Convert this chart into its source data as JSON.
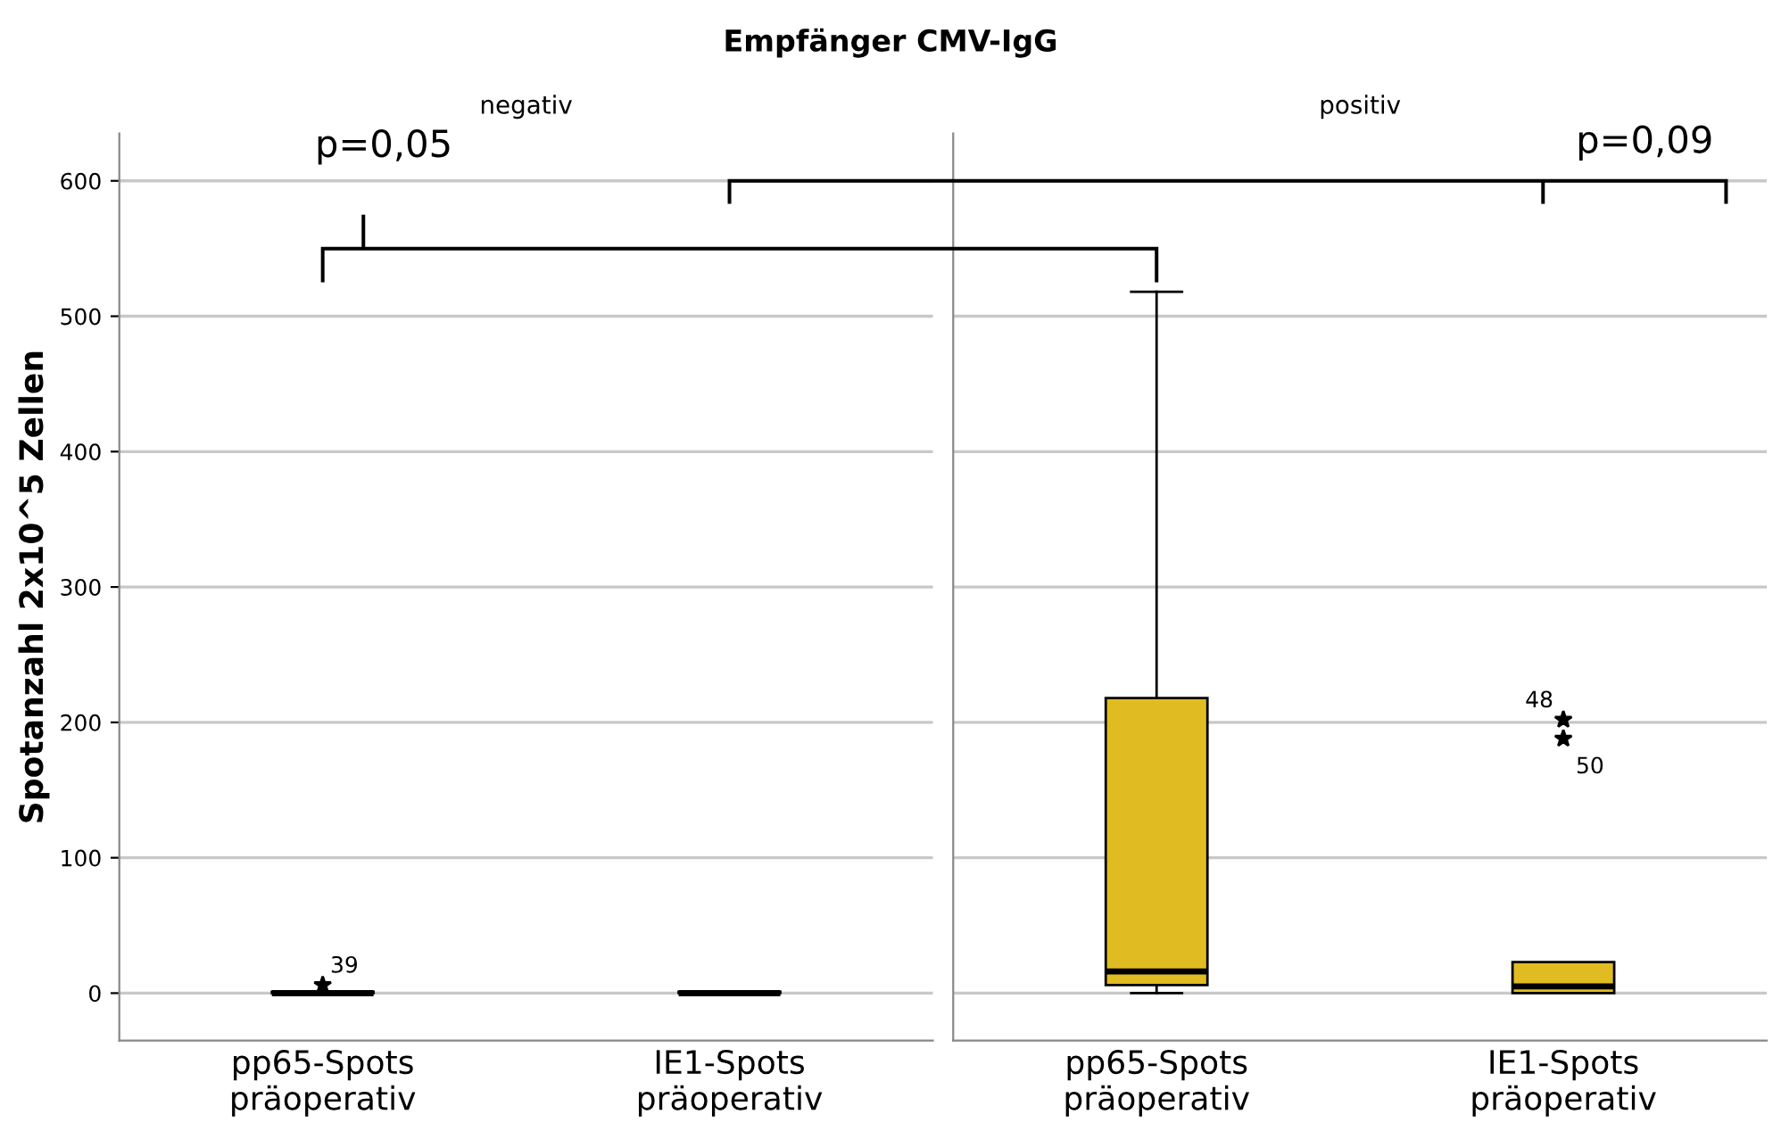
{
  "chart_data": [
    {
      "type": "box",
      "title": "Empfänger CMV-IgG",
      "subtitle": "negativ",
      "ylabel": "Spotanzahl 2x10^5 Zellen",
      "categories": [
        "pp65-Spots\npräoperativ",
        "IE1-Spots\npräoperativ"
      ],
      "color": "#e0bc22",
      "boxes": [
        {
          "q1": 0,
          "median": 0,
          "q3": 1,
          "outliers": [
            6
          ]
        },
        {
          "q1": 0,
          "median": 0,
          "q3": 1
        }
      ],
      "ylim": [
        -35,
        635
      ],
      "yticks": [
        0,
        100,
        200,
        300,
        400,
        500,
        600
      ],
      "grid": "y",
      "marker": "star",
      "annotations": [
        "p=0,05",
        "39"
      ]
    },
    {
      "type": "box",
      "subtitle": "positiv",
      "categories": [
        "pp65-Spots\npräoperativ",
        "IE1-Spots\npräoperativ"
      ],
      "color": "#e0bc22",
      "boxes": [
        {
          "low": 0,
          "q1": 6,
          "median": 16,
          "q3": 218,
          "high": 518
        },
        {
          "q1": 0,
          "median": 5,
          "q3": 23,
          "outliers": [
            202,
            188
          ]
        }
      ],
      "ylim": [
        -35,
        635
      ],
      "yticks": [
        0,
        100,
        200,
        300,
        400,
        500,
        600
      ],
      "grid": "y",
      "marker": "star",
      "tick_labels": "x",
      "annotations": [
        "p=0,09",
        "48",
        "50"
      ]
    }
  ]
}
